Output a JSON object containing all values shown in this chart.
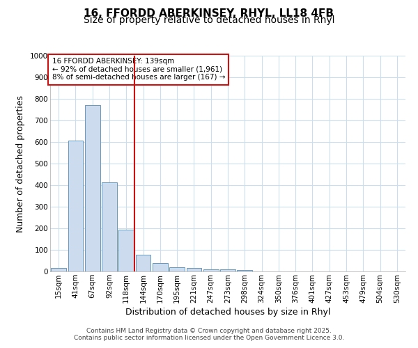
{
  "title_line1": "16, FFORDD ABERKINSEY, RHYL, LL18 4FB",
  "title_line2": "Size of property relative to detached houses in Rhyl",
  "xlabel": "Distribution of detached houses by size in Rhyl",
  "ylabel": "Number of detached properties",
  "categories": [
    "15sqm",
    "41sqm",
    "67sqm",
    "92sqm",
    "118sqm",
    "144sqm",
    "170sqm",
    "195sqm",
    "221sqm",
    "247sqm",
    "273sqm",
    "298sqm",
    "324sqm",
    "350sqm",
    "376sqm",
    "401sqm",
    "427sqm",
    "453sqm",
    "479sqm",
    "504sqm",
    "530sqm"
  ],
  "values": [
    15,
    607,
    770,
    413,
    193,
    78,
    38,
    18,
    15,
    10,
    10,
    8,
    0,
    0,
    0,
    0,
    0,
    0,
    0,
    0,
    0
  ],
  "bar_color": "#ccdcee",
  "bar_edge_color": "#6699bb",
  "vline_color": "#cc1111",
  "vline_x": 5.0,
  "annotation_line1": "16 FFORDD ABERKINSEY: 139sqm",
  "annotation_line2": "← 92% of detached houses are smaller (1,961)",
  "annotation_line3": "8% of semi-detached houses are larger (167) →",
  "annotation_box_facecolor": "#ffffff",
  "annotation_box_edgecolor": "#cc1111",
  "ylim": [
    0,
    1000
  ],
  "yticks": [
    0,
    100,
    200,
    300,
    400,
    500,
    600,
    700,
    800,
    900,
    1000
  ],
  "footer_line1": "Contains HM Land Registry data © Crown copyright and database right 2025.",
  "footer_line2": "Contains public sector information licensed under the Open Government Licence 3.0.",
  "bg_color": "#ffffff",
  "plot_bg_color": "#ffffff",
  "title_fontsize": 11,
  "subtitle_fontsize": 10,
  "tick_fontsize": 7.5,
  "axis_label_fontsize": 9,
  "footer_fontsize": 6.5,
  "annotation_fontsize": 7.5,
  "grid_color": "#ccddee"
}
